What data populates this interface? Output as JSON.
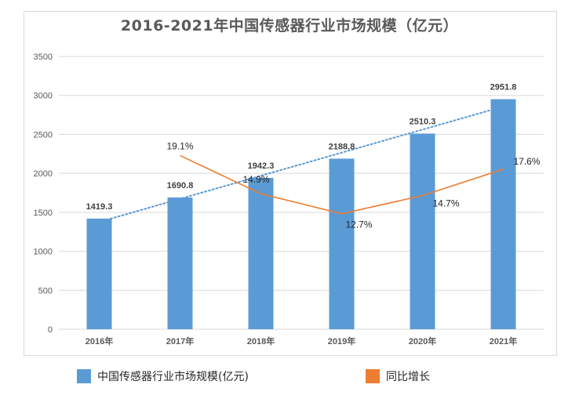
{
  "chart_data": {
    "type": "bar",
    "title": "2016-2021年中国传感器行业市场规模（亿元）",
    "categories": [
      "2016年",
      "2017年",
      "2018年",
      "2019年",
      "2020年",
      "2021年"
    ],
    "ylim": [
      0,
      3500
    ],
    "yticks": [
      0,
      500,
      1000,
      1500,
      2000,
      2500,
      3000,
      3500
    ],
    "grid": true,
    "legend_position": "bottom",
    "series": [
      {
        "name": "中国传感器行业市场规模(亿元)",
        "kind": "bar",
        "color": "#5b9bd5",
        "values": [
          1419.3,
          1690.8,
          1942.3,
          2188.8,
          2510.3,
          2951.8
        ],
        "labels": [
          "1419.3",
          "1690.8",
          "1942.3",
          "2188.8",
          "2510.3",
          "2951.8"
        ]
      },
      {
        "name": "同比增长",
        "kind": "line",
        "color": "#ed7d31",
        "values": [
          null,
          19.1,
          14.9,
          12.7,
          14.7,
          17.6
        ],
        "labels": [
          null,
          "19.1%",
          "14.9%",
          "12.7%",
          "14.7%",
          "17.6%"
        ],
        "secondary_axis_range": [
          0,
          30
        ]
      }
    ],
    "trendline": {
      "series": "中国传感器行业市场规模(亿元)",
      "style": "dotted",
      "color": "#5b9bd5"
    }
  }
}
